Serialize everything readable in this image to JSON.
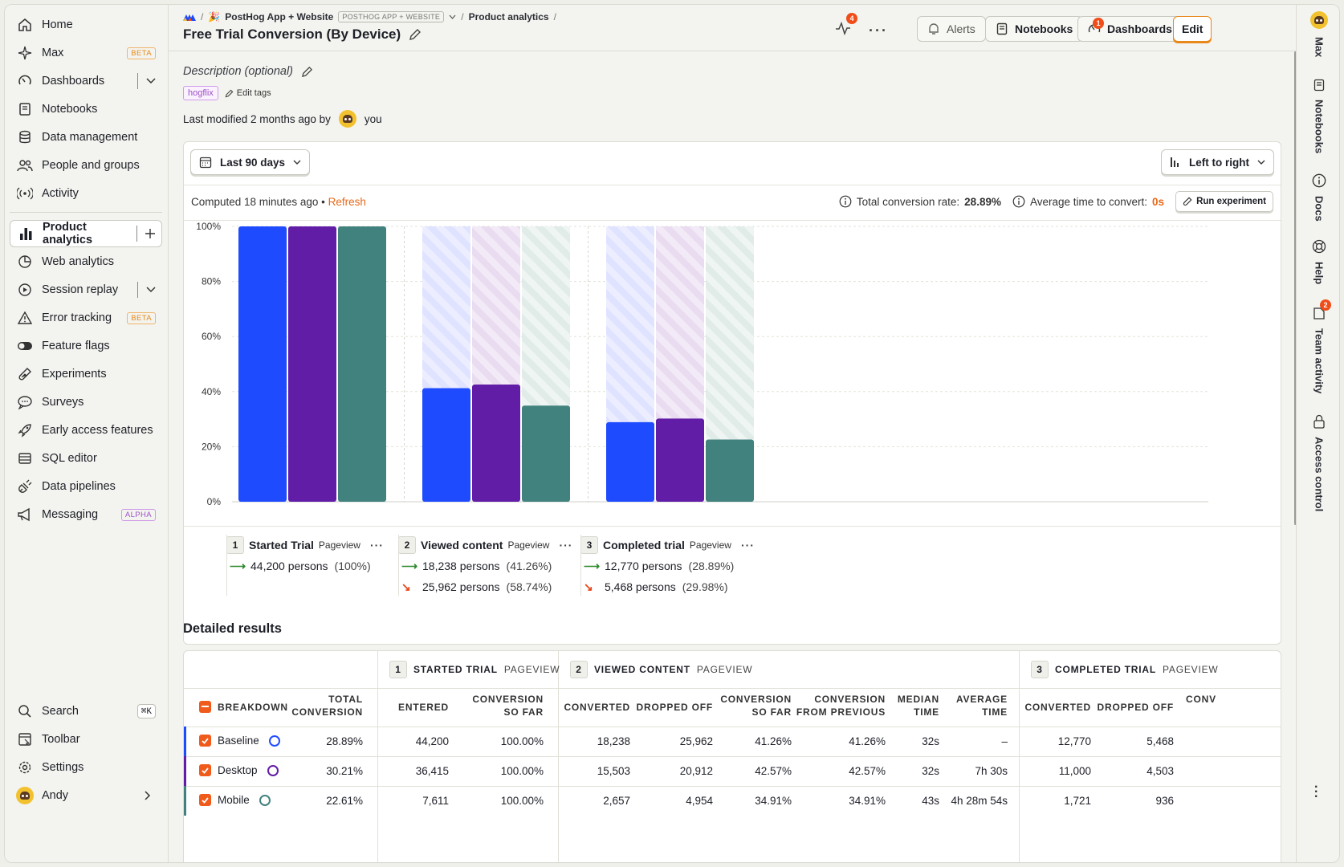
{
  "sidebar": {
    "items": [
      {
        "label": "Home",
        "icon": "home-icon"
      },
      {
        "label": "Max",
        "icon": "sparkle-icon",
        "badge": "BETA"
      },
      {
        "label": "Dashboards",
        "icon": "dashboard-icon"
      },
      {
        "label": "Notebooks",
        "icon": "notebook-icon"
      },
      {
        "label": "Data management",
        "icon": "database-icon"
      },
      {
        "label": "People and groups",
        "icon": "people-icon"
      },
      {
        "label": "Activity",
        "icon": "activity-icon"
      },
      {
        "label": "Product analytics",
        "icon": "bar-chart-icon"
      },
      {
        "label": "Web analytics",
        "icon": "pie-icon"
      },
      {
        "label": "Session replay",
        "icon": "play-icon"
      },
      {
        "label": "Error tracking",
        "icon": "warning-icon",
        "badge": "BETA"
      },
      {
        "label": "Feature flags",
        "icon": "toggle-icon"
      },
      {
        "label": "Experiments",
        "icon": "flask-icon"
      },
      {
        "label": "Surveys",
        "icon": "chat-icon"
      },
      {
        "label": "Early access features",
        "icon": "rocket-icon"
      },
      {
        "label": "SQL editor",
        "icon": "table-icon"
      },
      {
        "label": "Data pipelines",
        "icon": "plug-icon"
      },
      {
        "label": "Messaging",
        "icon": "megaphone-icon",
        "badge": "ALPHA"
      }
    ],
    "bottom": {
      "search": "Search",
      "search_shortcut": "⌘K",
      "toolbar": "Toolbar",
      "settings": "Settings",
      "user": "Andy"
    }
  },
  "header": {
    "breadcrumb_project": "PostHog App + Website",
    "breadcrumb_tag": "POSTHOG APP + WEBSITE",
    "breadcrumb_section": "Product analytics",
    "title": "Free Trial Conversion (By Device)",
    "activity_count": "4",
    "alerts": "Alerts",
    "notebooks": "Notebooks",
    "dashboards": "Dashboards",
    "dashboards_count": "1",
    "edit": "Edit"
  },
  "meta": {
    "description_placeholder": "Description (optional)",
    "tag": "hogflix",
    "edit_tags": "Edit tags",
    "last_modified": "Last modified 2 months ago by",
    "modified_by": "you"
  },
  "controls": {
    "date_range": "Last 90 days",
    "layout": "Left to right",
    "computed": "Computed 18 minutes ago",
    "bullet": "•",
    "refresh": "Refresh",
    "total_conversion_label": "Total conversion rate:",
    "total_conversion_value": "28.89%",
    "avg_time_label": "Average time to convert:",
    "avg_time_value": "0s",
    "run_experiment": "Run experiment"
  },
  "chart_data": {
    "type": "bar",
    "categories": [
      "Started Trial",
      "Viewed content",
      "Completed trial"
    ],
    "series": [
      {
        "name": "Baseline",
        "color": "#1f4bff",
        "values": [
          100,
          41.26,
          28.89
        ]
      },
      {
        "name": "Desktop",
        "color": "#621da6",
        "values": [
          100,
          42.57,
          30.21
        ]
      },
      {
        "name": "Mobile",
        "color": "#42827e",
        "values": [
          100,
          34.91,
          22.61
        ]
      }
    ],
    "ylim": [
      0,
      100
    ],
    "yticks": [
      "0%",
      "20%",
      "40%",
      "60%",
      "80%",
      "100%"
    ],
    "grid": true
  },
  "steps": [
    {
      "num": "1",
      "title": "Started Trial",
      "sub": "Pageview",
      "converted": "44,200 persons",
      "converted_pct": "(100%)",
      "dropped": "",
      "dropped_pct": ""
    },
    {
      "num": "2",
      "title": "Viewed content",
      "sub": "Pageview",
      "converted": "18,238 persons",
      "converted_pct": "(41.26%)",
      "dropped": "25,962 persons",
      "dropped_pct": "(58.74%)"
    },
    {
      "num": "3",
      "title": "Completed trial",
      "sub": "Pageview",
      "converted": "12,770 persons",
      "converted_pct": "(28.89%)",
      "dropped": "5,468 persons",
      "dropped_pct": "(29.98%)"
    }
  ],
  "results": {
    "title": "Detailed results",
    "groups": [
      {
        "num": "1",
        "label": "STARTED TRIAL",
        "sub": "PAGEVIEW"
      },
      {
        "num": "2",
        "label": "VIEWED CONTENT",
        "sub": "PAGEVIEW"
      },
      {
        "num": "3",
        "label": "COMPLETED TRIAL",
        "sub": "PAGEVIEW"
      }
    ],
    "headers": {
      "breakdown": "BREAKDOWN",
      "total_conv_1": "TOTAL",
      "total_conv_2": "CONVERSION",
      "entered": "ENTERED",
      "conv_so_far_1": "CONVERSION",
      "conv_so_far_2": "SO FAR",
      "converted": "CONVERTED",
      "dropped_off": "DROPPED OFF",
      "conv_from_prev_1": "CONVERSION",
      "conv_from_prev_2": "FROM PREVIOUS",
      "median_1": "MEDIAN",
      "median_2": "TIME",
      "average_1": "AVERAGE",
      "average_2": "TIME",
      "cut": "CONV"
    },
    "rows": [
      {
        "name": "Baseline",
        "color": "#1f4bff",
        "total": "28.89%",
        "entered": "44,200",
        "so_far1": "100.00%",
        "converted2": "18,238",
        "dropped2": "25,962",
        "so_far2": "41.26%",
        "from_prev2": "41.26%",
        "median2": "32s",
        "avg2": "–",
        "converted3": "12,770",
        "dropped3": "5,468"
      },
      {
        "name": "Desktop",
        "color": "#621da6",
        "total": "30.21%",
        "entered": "36,415",
        "so_far1": "100.00%",
        "converted2": "15,503",
        "dropped2": "20,912",
        "so_far2": "42.57%",
        "from_prev2": "42.57%",
        "median2": "32s",
        "avg2": "7h 30s",
        "converted3": "11,000",
        "dropped3": "4,503"
      },
      {
        "name": "Mobile",
        "color": "#42827e",
        "total": "22.61%",
        "entered": "7,611",
        "so_far1": "100.00%",
        "converted2": "2,657",
        "dropped2": "4,954",
        "so_far2": "34.91%",
        "from_prev2": "34.91%",
        "median2": "43s",
        "avg2": "4h 28m 54s",
        "converted3": "1,721",
        "dropped3": "936"
      }
    ]
  },
  "rail": {
    "max": "Max",
    "notebooks": "Notebooks",
    "docs": "Docs",
    "help": "Help",
    "team_activity": "Team activity",
    "team_activity_count": "2",
    "access_control": "Access control"
  }
}
